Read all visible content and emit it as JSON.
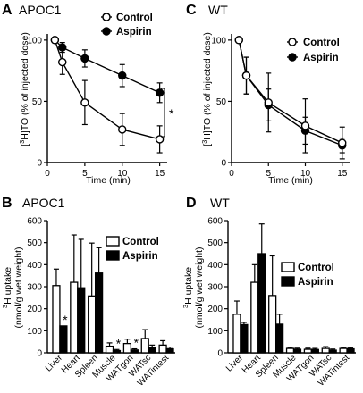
{
  "panels": [
    {
      "letter": "A",
      "title": "APOC1",
      "ylabel": "[3H]TO (% of injected dose)",
      "ylabel_parts": [
        "[",
        "3",
        "H]TO (% of injected dose)"
      ],
      "xlabel": "Time (min)",
      "legend": [
        "Control",
        "Aspirin"
      ],
      "bracket_star": "*"
    },
    {
      "letter": "C",
      "title": "WT",
      "ylabel": "[3H]TO (% of injected dose)",
      "ylabel_parts": [
        "[",
        "3",
        "H]TO (% of injected dose)"
      ],
      "xlabel": "Time (min)",
      "legend": [
        "Control",
        "Aspirin"
      ]
    },
    {
      "letter": "B",
      "title": "APOC1",
      "ylabel_line1": "3H uptake",
      "ylabel_line1_parts": [
        "3",
        "H uptake"
      ],
      "ylabel_line2": "(nmol/g wet weight)",
      "legend": [
        "Control",
        "Aspirin"
      ],
      "star": "*"
    },
    {
      "letter": "D",
      "title": "WT",
      "ylabel_line1": "3H uptake",
      "ylabel_line1_parts": [
        "3",
        "H uptake"
      ],
      "ylabel_line2": "(nmol/g wet weight)",
      "legend": [
        "Control",
        "Aspirin"
      ]
    }
  ],
  "chart_data": [
    {
      "panel": "A",
      "type": "line",
      "title": "APOC1",
      "xlabel": "Time (min)",
      "ylabel": "[3H]TO (% of injected dose)",
      "xlim": [
        0,
        16
      ],
      "ylim": [
        0,
        105
      ],
      "xticks": [
        0,
        5,
        10,
        15
      ],
      "yticks": [
        0,
        50,
        100
      ],
      "x": [
        1,
        2,
        5,
        10,
        15
      ],
      "series": [
        {
          "name": "Control",
          "marker": "open-circle",
          "values": [
            100,
            82,
            49,
            27,
            19
          ],
          "errors": [
            0,
            10,
            18,
            13,
            11
          ]
        },
        {
          "name": "Aspirin",
          "marker": "filled-circle",
          "values": [
            100,
            94,
            85,
            71,
            57
          ],
          "errors": [
            0,
            4,
            7,
            9,
            8
          ]
        }
      ],
      "annotations": [
        {
          "text": "*",
          "between_series_at_x": 15
        }
      ],
      "legend": "top-right"
    },
    {
      "panel": "C",
      "type": "line",
      "title": "WT",
      "xlabel": "Time (min)",
      "ylabel": "[3H]TO (% of injected dose)",
      "xlim": [
        0,
        16
      ],
      "ylim": [
        0,
        105
      ],
      "xticks": [
        0,
        5,
        10,
        15
      ],
      "yticks": [
        0,
        50,
        100
      ],
      "x": [
        1,
        2,
        5,
        10,
        15
      ],
      "series": [
        {
          "name": "Control",
          "marker": "open-circle",
          "values": [
            100,
            71,
            49,
            30,
            16
          ],
          "errors": [
            0,
            15,
            24,
            22,
            13
          ]
        },
        {
          "name": "Aspirin",
          "marker": "filled-circle",
          "values": [
            100,
            71,
            47,
            26,
            14
          ],
          "errors": [
            0,
            15,
            13,
            11,
            6
          ]
        }
      ],
      "legend": "top-right"
    },
    {
      "panel": "B",
      "type": "bar",
      "title": "APOC1",
      "ylabel": "3H uptake (nmol/g wet weight)",
      "ylim": [
        0,
        600
      ],
      "yticks": [
        0,
        100,
        200,
        300,
        400,
        500,
        600
      ],
      "categories": [
        "Liver",
        "Heart",
        "Spleen",
        "Muscle",
        "WATgon",
        "WATsc",
        "WATintest"
      ],
      "series": [
        {
          "name": "Control",
          "fill": "#ffffff",
          "values": [
            305,
            320,
            258,
            30,
            42,
            65,
            35
          ],
          "errors": [
            75,
            215,
            240,
            15,
            20,
            40,
            20
          ]
        },
        {
          "name": "Aspirin",
          "fill": "#000000",
          "values": [
            122,
            295,
            362,
            10,
            13,
            25,
            18
          ],
          "errors": [
            0,
            220,
            115,
            5,
            5,
            10,
            8
          ]
        }
      ],
      "significance": [
        {
          "category": "Liver",
          "series": "Aspirin",
          "text": "*"
        },
        {
          "category": "Muscle",
          "series": "Aspirin",
          "text": "*"
        },
        {
          "category": "WATgon",
          "series": "Aspirin",
          "text": "*"
        }
      ],
      "legend": "top-right"
    },
    {
      "panel": "D",
      "type": "bar",
      "title": "WT",
      "ylabel": "3H uptake (nmol/g wet weight)",
      "ylim": [
        0,
        600
      ],
      "yticks": [
        0,
        100,
        200,
        300,
        400,
        500,
        600
      ],
      "categories": [
        "Liver",
        "Heart",
        "Spleen",
        "Muscle",
        "WATgon",
        "WATsc",
        "WATintest"
      ],
      "series": [
        {
          "name": "Control",
          "fill": "#ffffff",
          "values": [
            175,
            320,
            260,
            20,
            16,
            20,
            20
          ],
          "errors": [
            60,
            80,
            180,
            5,
            5,
            8,
            5
          ]
        },
        {
          "name": "Aspirin",
          "fill": "#000000",
          "values": [
            128,
            450,
            130,
            16,
            15,
            12,
            18
          ],
          "errors": [
            10,
            135,
            45,
            5,
            5,
            5,
            5
          ]
        }
      ],
      "legend": "top-right"
    }
  ]
}
